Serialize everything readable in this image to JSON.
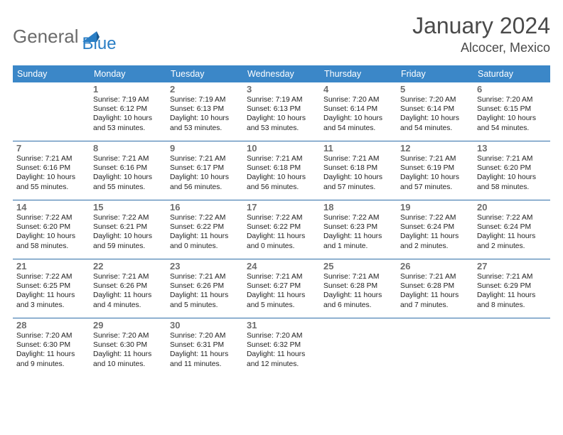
{
  "brand": {
    "part1": "General",
    "part2": "Blue"
  },
  "title": "January 2024",
  "location": "Alcocer, Mexico",
  "colors": {
    "header_bg": "#3b87c8",
    "header_text": "#ffffff",
    "week_divider": "#2f6ea8",
    "daynum_color": "#6d6d6d",
    "text_color": "#222222",
    "title_color": "#4a4a4a",
    "logo_gray": "#6b6b6b",
    "logo_blue": "#2a7ec5"
  },
  "dow": [
    "Sunday",
    "Monday",
    "Tuesday",
    "Wednesday",
    "Thursday",
    "Friday",
    "Saturday"
  ],
  "weeks": [
    [
      null,
      {
        "n": "1",
        "sr": "Sunrise: 7:19 AM",
        "ss": "Sunset: 6:12 PM",
        "d1": "Daylight: 10 hours",
        "d2": "and 53 minutes."
      },
      {
        "n": "2",
        "sr": "Sunrise: 7:19 AM",
        "ss": "Sunset: 6:13 PM",
        "d1": "Daylight: 10 hours",
        "d2": "and 53 minutes."
      },
      {
        "n": "3",
        "sr": "Sunrise: 7:19 AM",
        "ss": "Sunset: 6:13 PM",
        "d1": "Daylight: 10 hours",
        "d2": "and 53 minutes."
      },
      {
        "n": "4",
        "sr": "Sunrise: 7:20 AM",
        "ss": "Sunset: 6:14 PM",
        "d1": "Daylight: 10 hours",
        "d2": "and 54 minutes."
      },
      {
        "n": "5",
        "sr": "Sunrise: 7:20 AM",
        "ss": "Sunset: 6:14 PM",
        "d1": "Daylight: 10 hours",
        "d2": "and 54 minutes."
      },
      {
        "n": "6",
        "sr": "Sunrise: 7:20 AM",
        "ss": "Sunset: 6:15 PM",
        "d1": "Daylight: 10 hours",
        "d2": "and 54 minutes."
      }
    ],
    [
      {
        "n": "7",
        "sr": "Sunrise: 7:21 AM",
        "ss": "Sunset: 6:16 PM",
        "d1": "Daylight: 10 hours",
        "d2": "and 55 minutes."
      },
      {
        "n": "8",
        "sr": "Sunrise: 7:21 AM",
        "ss": "Sunset: 6:16 PM",
        "d1": "Daylight: 10 hours",
        "d2": "and 55 minutes."
      },
      {
        "n": "9",
        "sr": "Sunrise: 7:21 AM",
        "ss": "Sunset: 6:17 PM",
        "d1": "Daylight: 10 hours",
        "d2": "and 56 minutes."
      },
      {
        "n": "10",
        "sr": "Sunrise: 7:21 AM",
        "ss": "Sunset: 6:18 PM",
        "d1": "Daylight: 10 hours",
        "d2": "and 56 minutes."
      },
      {
        "n": "11",
        "sr": "Sunrise: 7:21 AM",
        "ss": "Sunset: 6:18 PM",
        "d1": "Daylight: 10 hours",
        "d2": "and 57 minutes."
      },
      {
        "n": "12",
        "sr": "Sunrise: 7:21 AM",
        "ss": "Sunset: 6:19 PM",
        "d1": "Daylight: 10 hours",
        "d2": "and 57 minutes."
      },
      {
        "n": "13",
        "sr": "Sunrise: 7:21 AM",
        "ss": "Sunset: 6:20 PM",
        "d1": "Daylight: 10 hours",
        "d2": "and 58 minutes."
      }
    ],
    [
      {
        "n": "14",
        "sr": "Sunrise: 7:22 AM",
        "ss": "Sunset: 6:20 PM",
        "d1": "Daylight: 10 hours",
        "d2": "and 58 minutes."
      },
      {
        "n": "15",
        "sr": "Sunrise: 7:22 AM",
        "ss": "Sunset: 6:21 PM",
        "d1": "Daylight: 10 hours",
        "d2": "and 59 minutes."
      },
      {
        "n": "16",
        "sr": "Sunrise: 7:22 AM",
        "ss": "Sunset: 6:22 PM",
        "d1": "Daylight: 11 hours",
        "d2": "and 0 minutes."
      },
      {
        "n": "17",
        "sr": "Sunrise: 7:22 AM",
        "ss": "Sunset: 6:22 PM",
        "d1": "Daylight: 11 hours",
        "d2": "and 0 minutes."
      },
      {
        "n": "18",
        "sr": "Sunrise: 7:22 AM",
        "ss": "Sunset: 6:23 PM",
        "d1": "Daylight: 11 hours",
        "d2": "and 1 minute."
      },
      {
        "n": "19",
        "sr": "Sunrise: 7:22 AM",
        "ss": "Sunset: 6:24 PM",
        "d1": "Daylight: 11 hours",
        "d2": "and 2 minutes."
      },
      {
        "n": "20",
        "sr": "Sunrise: 7:22 AM",
        "ss": "Sunset: 6:24 PM",
        "d1": "Daylight: 11 hours",
        "d2": "and 2 minutes."
      }
    ],
    [
      {
        "n": "21",
        "sr": "Sunrise: 7:22 AM",
        "ss": "Sunset: 6:25 PM",
        "d1": "Daylight: 11 hours",
        "d2": "and 3 minutes."
      },
      {
        "n": "22",
        "sr": "Sunrise: 7:21 AM",
        "ss": "Sunset: 6:26 PM",
        "d1": "Daylight: 11 hours",
        "d2": "and 4 minutes."
      },
      {
        "n": "23",
        "sr": "Sunrise: 7:21 AM",
        "ss": "Sunset: 6:26 PM",
        "d1": "Daylight: 11 hours",
        "d2": "and 5 minutes."
      },
      {
        "n": "24",
        "sr": "Sunrise: 7:21 AM",
        "ss": "Sunset: 6:27 PM",
        "d1": "Daylight: 11 hours",
        "d2": "and 5 minutes."
      },
      {
        "n": "25",
        "sr": "Sunrise: 7:21 AM",
        "ss": "Sunset: 6:28 PM",
        "d1": "Daylight: 11 hours",
        "d2": "and 6 minutes."
      },
      {
        "n": "26",
        "sr": "Sunrise: 7:21 AM",
        "ss": "Sunset: 6:28 PM",
        "d1": "Daylight: 11 hours",
        "d2": "and 7 minutes."
      },
      {
        "n": "27",
        "sr": "Sunrise: 7:21 AM",
        "ss": "Sunset: 6:29 PM",
        "d1": "Daylight: 11 hours",
        "d2": "and 8 minutes."
      }
    ],
    [
      {
        "n": "28",
        "sr": "Sunrise: 7:20 AM",
        "ss": "Sunset: 6:30 PM",
        "d1": "Daylight: 11 hours",
        "d2": "and 9 minutes."
      },
      {
        "n": "29",
        "sr": "Sunrise: 7:20 AM",
        "ss": "Sunset: 6:30 PM",
        "d1": "Daylight: 11 hours",
        "d2": "and 10 minutes."
      },
      {
        "n": "30",
        "sr": "Sunrise: 7:20 AM",
        "ss": "Sunset: 6:31 PM",
        "d1": "Daylight: 11 hours",
        "d2": "and 11 minutes."
      },
      {
        "n": "31",
        "sr": "Sunrise: 7:20 AM",
        "ss": "Sunset: 6:32 PM",
        "d1": "Daylight: 11 hours",
        "d2": "and 12 minutes."
      },
      null,
      null,
      null
    ]
  ]
}
